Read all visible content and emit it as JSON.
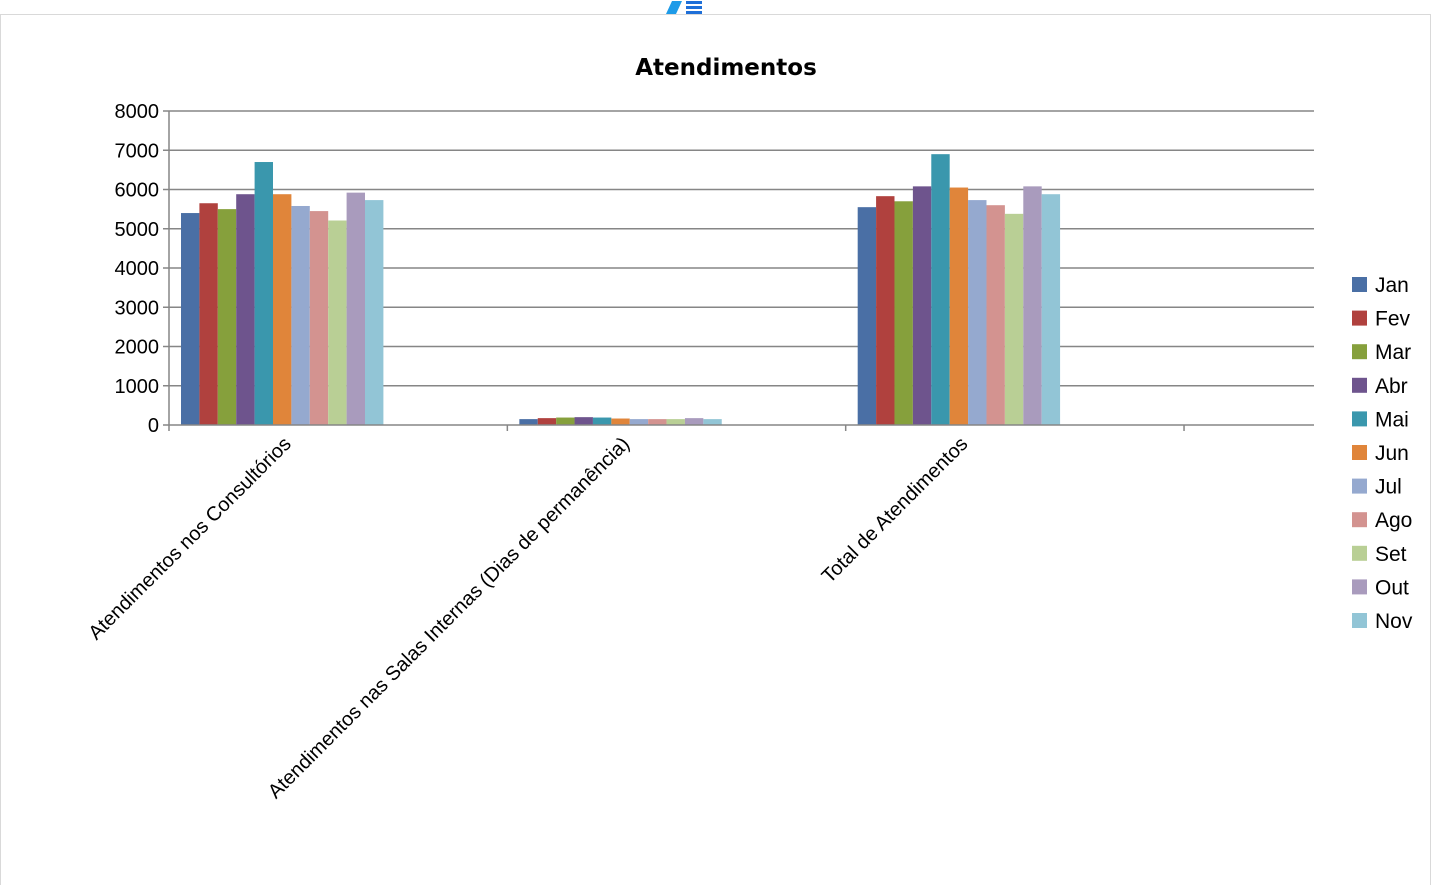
{
  "chart_data": {
    "type": "bar",
    "title": "Atendimentos",
    "xlabel": "",
    "ylabel": "",
    "ylim": [
      0,
      8000
    ],
    "yticks": [
      "0",
      "1000",
      "2000",
      "3000",
      "4000",
      "5000",
      "6000",
      "7000",
      "8000"
    ],
    "grid": true,
    "legend_position": "right",
    "categories": [
      "Atendimentos nos Consultórios",
      "Atendimentos nas Salas Internas (Dias de permanência)",
      "Total de Atendimentos"
    ],
    "series": [
      {
        "name": "Jan",
        "color": "#4a6fa5",
        "values": [
          5400,
          150,
          5550
        ]
      },
      {
        "name": "Fev",
        "color": "#b0413e",
        "values": [
          5650,
          175,
          5830
        ]
      },
      {
        "name": "Mar",
        "color": "#86a03c",
        "values": [
          5500,
          190,
          5700
        ]
      },
      {
        "name": "Abr",
        "color": "#6e548d",
        "values": [
          5880,
          200,
          6080
        ]
      },
      {
        "name": "Mai",
        "color": "#3a97ad",
        "values": [
          6700,
          190,
          6900
        ]
      },
      {
        "name": "Jun",
        "color": "#e0853a",
        "values": [
          5880,
          165,
          6050
        ]
      },
      {
        "name": "Jul",
        "color": "#95a9cf",
        "values": [
          5580,
          150,
          5730
        ]
      },
      {
        "name": "Ago",
        "color": "#d39390",
        "values": [
          5450,
          150,
          5600
        ]
      },
      {
        "name": "Set",
        "color": "#b9cf95",
        "values": [
          5210,
          150,
          5380
        ]
      },
      {
        "name": "Out",
        "color": "#a99bbd",
        "values": [
          5920,
          175,
          6080
        ]
      },
      {
        "name": "Nov",
        "color": "#92c5d6",
        "values": [
          5730,
          150,
          5880
        ]
      }
    ]
  }
}
